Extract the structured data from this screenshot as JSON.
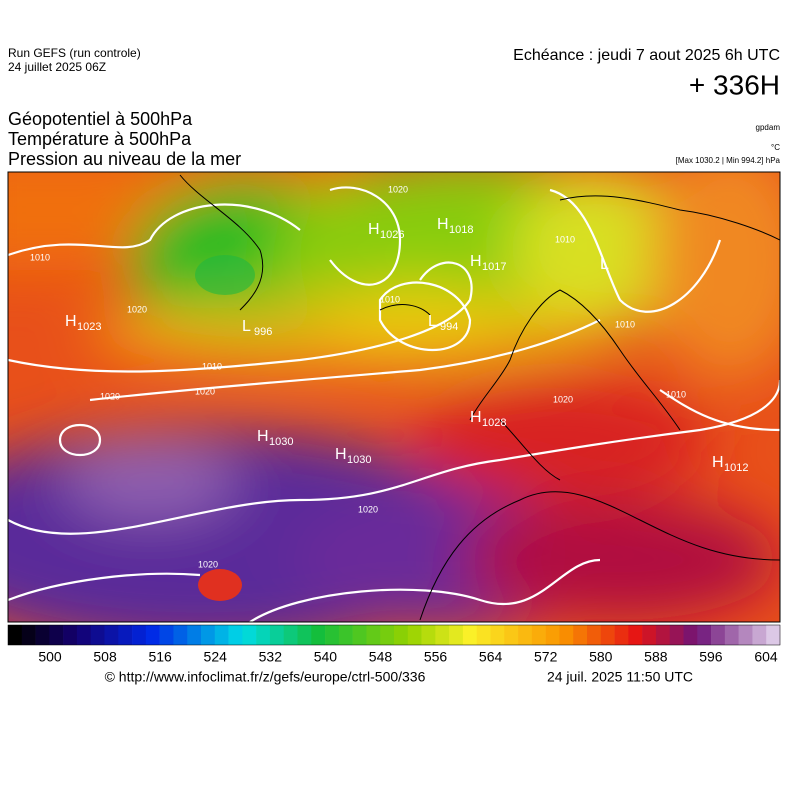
{
  "header": {
    "run": "Run GEFS (run controle)",
    "date": "24 juillet 2025 06Z",
    "echeance": "Echéance : jeudi 7 aout 2025 6h UTC",
    "lead": "+ 336H"
  },
  "fields": [
    "Géopotentiel à 500hPa",
    "Température à 500hPa",
    "Pression au niveau de la mer"
  ],
  "units": [
    "gpdam",
    "°C",
    "[Max 1030.2 | Min 994.2] hPa"
  ],
  "map": {
    "centers": [
      {
        "letter": "H",
        "value": 1023
      },
      {
        "letter": "L",
        "value": 996
      },
      {
        "letter": "H",
        "value": 1026
      },
      {
        "letter": "H",
        "value": 1018
      },
      {
        "letter": "H",
        "value": 1017
      },
      {
        "letter": "L",
        "value": 994
      },
      {
        "letter": "L"
      },
      {
        "letter": "H",
        "value": 1030
      },
      {
        "letter": "H",
        "value": 1030
      },
      {
        "letter": "H",
        "value": 1028
      },
      {
        "letter": "H",
        "value": 1012
      }
    ],
    "isobar_labels": [
      1010,
      1020,
      1010,
      1020,
      1020,
      1020,
      1010,
      1010,
      1020,
      1010,
      1020,
      1020,
      1010
    ]
  },
  "colorbar": {
    "ticks": [
      500,
      508,
      516,
      524,
      532,
      540,
      548,
      556,
      564,
      572,
      580,
      588,
      596,
      604
    ]
  },
  "footer": {
    "url": "© http://www.infoclimat.fr/z/gefs/europe/ctrl-500/336",
    "issued": "24 juil. 2025 11:50 UTC"
  }
}
